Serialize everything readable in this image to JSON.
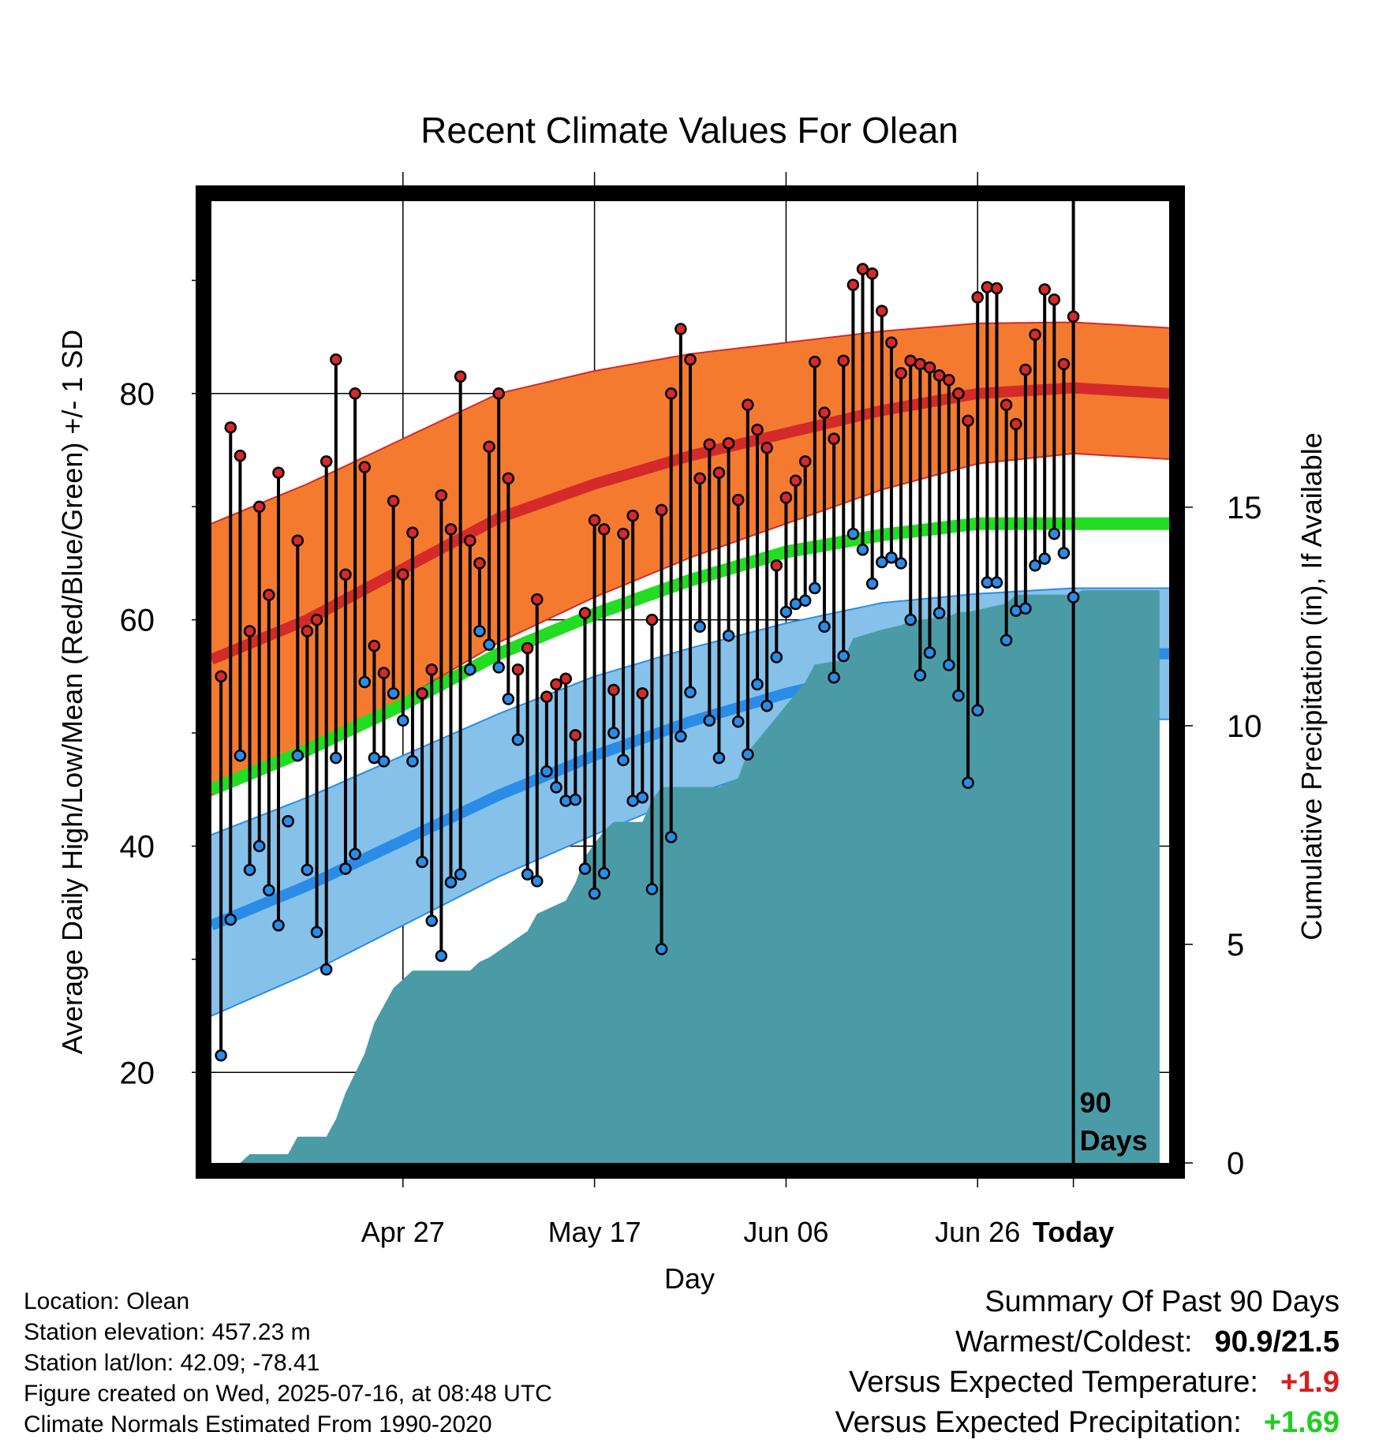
{
  "chart_data": {
    "type": "line",
    "title": "Recent Climate Values For Olean",
    "xlabel": "Day",
    "ylabel": "Average Daily High/Low/Mean (Red/Blue/Green) +/- 1 SD",
    "y2label": "Cumulative Precipitation (in), If Available",
    "x_tick_labels": [
      "Apr 27",
      "May 17",
      "Jun 06",
      "Jun 26",
      "Today"
    ],
    "y_ticks": [
      20,
      40,
      60,
      80
    ],
    "y2_ticks": [
      0,
      5,
      10,
      15
    ],
    "ylim": [
      12,
      97
    ],
    "y2lim": [
      0,
      22
    ],
    "x_range_days": [
      -90,
      10
    ],
    "marker_label": "90 Days",
    "colors": {
      "high_band": "#f47a30",
      "high_mean": "#d42a2a",
      "low_band": "#85c1e9",
      "low_mean": "#2b8ce8",
      "mean": "#22dd22",
      "precip": "#4a9ba5",
      "high_dot": "#d42a2a",
      "low_dot": "#2b8ce8"
    },
    "normals": {
      "days": [
        -90,
        -80,
        -70,
        -60,
        -50,
        -40,
        -30,
        -20,
        -10,
        0,
        10
      ],
      "high_mean": [
        56.5,
        60,
        64.5,
        69,
        72,
        74.5,
        76.5,
        78.5,
        80,
        80.5,
        80
      ],
      "high_sd": [
        12,
        12,
        11.5,
        11,
        10,
        9,
        8,
        7,
        6.2,
        5.8,
        5.8
      ],
      "low_mean": [
        33,
        36.5,
        40.5,
        44.5,
        48,
        51,
        53.5,
        55.5,
        56.5,
        57,
        57
      ],
      "low_sd": [
        8,
        7.8,
        7.5,
        7.2,
        7,
        6.5,
        6.2,
        6,
        5.8,
        5.8,
        5.8
      ],
      "mean": [
        45,
        48.5,
        52.5,
        57,
        60.5,
        63.5,
        66,
        67.5,
        68.5,
        68.5,
        68.5
      ]
    },
    "daily_temperature": {
      "days_before_today": [
        89,
        88,
        87,
        86,
        85,
        84,
        83,
        82,
        81,
        80,
        79,
        78,
        77,
        76,
        75,
        74,
        73,
        72,
        71,
        70,
        69,
        68,
        67,
        66,
        65,
        64,
        63,
        62,
        61,
        60,
        59,
        58,
        57,
        56,
        55,
        54,
        53,
        52,
        51,
        50,
        49,
        48,
        47,
        46,
        45,
        44,
        43,
        42,
        41,
        40,
        39,
        38,
        37,
        36,
        35,
        34,
        33,
        32,
        31,
        30,
        29,
        28,
        27,
        26,
        25,
        24,
        23,
        22,
        21,
        20,
        19,
        18,
        17,
        16,
        15,
        14,
        13,
        12,
        11,
        10,
        9,
        8,
        7,
        6,
        5,
        4,
        3,
        2,
        1,
        0
      ],
      "high": [
        55,
        77,
        74.5,
        59,
        70,
        62.2,
        73,
        42.2,
        67,
        59,
        60,
        74,
        83,
        64,
        80,
        73.5,
        57.7,
        55.3,
        70.5,
        64,
        67.7,
        53.5,
        55.6,
        71,
        68,
        81.5,
        67,
        65,
        75.3,
        80,
        72.5,
        55.6,
        57.5,
        61.8,
        53.2,
        54.3,
        54.8,
        49.8,
        60.6,
        68.8,
        68,
        53.8,
        67.6,
        69.2,
        53.5,
        60,
        69.7,
        80,
        85.7,
        83,
        72.5,
        75.5,
        73,
        75.6,
        70.6,
        79,
        76.8,
        75.2,
        64.8,
        70.8,
        72.3,
        74,
        82.8,
        78.3,
        76,
        82.9,
        89.6,
        91,
        90.6,
        87.3,
        84.5,
        81.8,
        82.9,
        82.6,
        82.3,
        81.6,
        81.2,
        80,
        77.6,
        88.5,
        89.4,
        89.3,
        79,
        77.3,
        82.1,
        85.2,
        89.2,
        88.3,
        82.6,
        86.8
      ],
      "low": [
        21.5,
        33.5,
        48,
        37.9,
        40,
        36.1,
        33,
        42.2,
        48,
        37.9,
        32.4,
        29.1,
        47.8,
        38,
        39.3,
        54.5,
        47.8,
        47.5,
        53.5,
        51.1,
        47.5,
        38.6,
        33.4,
        30.3,
        36.8,
        37.5,
        55.6,
        59,
        57.8,
        55.8,
        53,
        49.4,
        37.5,
        36.9,
        46.6,
        45.2,
        44,
        44.1,
        38,
        35.8,
        37.6,
        50,
        47.6,
        44,
        44.3,
        36.2,
        30.9,
        40.8,
        49.7,
        53.6,
        59.4,
        51.1,
        47.8,
        58.6,
        51,
        48.1,
        54.3,
        52.4,
        56.7,
        60.7,
        61.4,
        61.7,
        62.8,
        59.4,
        54.9,
        56.8,
        67.6,
        66.2,
        63.2,
        65.1,
        65.5,
        65,
        60,
        55.1,
        57.1,
        60.6,
        56,
        53.3,
        45.6,
        52,
        63.3,
        63.3,
        58.2,
        60.8,
        61,
        64.8,
        65.4,
        67.6,
        65.9,
        62
      ]
    },
    "cumulative_precip": {
      "days_before_today": [
        90,
        87,
        86,
        82,
        81,
        78,
        77,
        76,
        74,
        73,
        71,
        69,
        63,
        62,
        61,
        59,
        57,
        56,
        53,
        52,
        51,
        49,
        48,
        45,
        44,
        43,
        37,
        35,
        34,
        28,
        27,
        24,
        23,
        20,
        18,
        17,
        13,
        12,
        11,
        7,
        6,
        0,
        -1,
        -9
      ],
      "inches": [
        0,
        0,
        0.2,
        0.2,
        0.6,
        0.6,
        1,
        1.6,
        2.5,
        3.2,
        4,
        4.4,
        4.4,
        4.6,
        4.7,
        5,
        5.3,
        5.7,
        6,
        6.4,
        7,
        7.6,
        7.8,
        7.8,
        8.3,
        8.6,
        8.6,
        8.8,
        9.4,
        11,
        11.4,
        11.5,
        12,
        12.2,
        12.3,
        12.4,
        12.5,
        12.6,
        12.6,
        12.8,
        13,
        13,
        13.1,
        13.1
      ]
    }
  },
  "footer": {
    "location": "Location: Olean",
    "elevation": "Station elevation: 457.23 m",
    "latlon": "Station lat/lon: 42.09; -78.41",
    "created": "Figure created on Wed, 2025-07-16, at 08:48 UTC",
    "normals": "Climate Normals Estimated From 1990-2020"
  },
  "summary": {
    "heading": "Summary Of Past 90 Days",
    "warm_cold_label": "Warmest/Coldest:",
    "warm_cold_value": "90.9/21.5",
    "temp_label": "Versus Expected Temperature:",
    "temp_value": "+1.9",
    "precip_label": "Versus Expected Precipitation:",
    "precip_value": "+1.69"
  }
}
